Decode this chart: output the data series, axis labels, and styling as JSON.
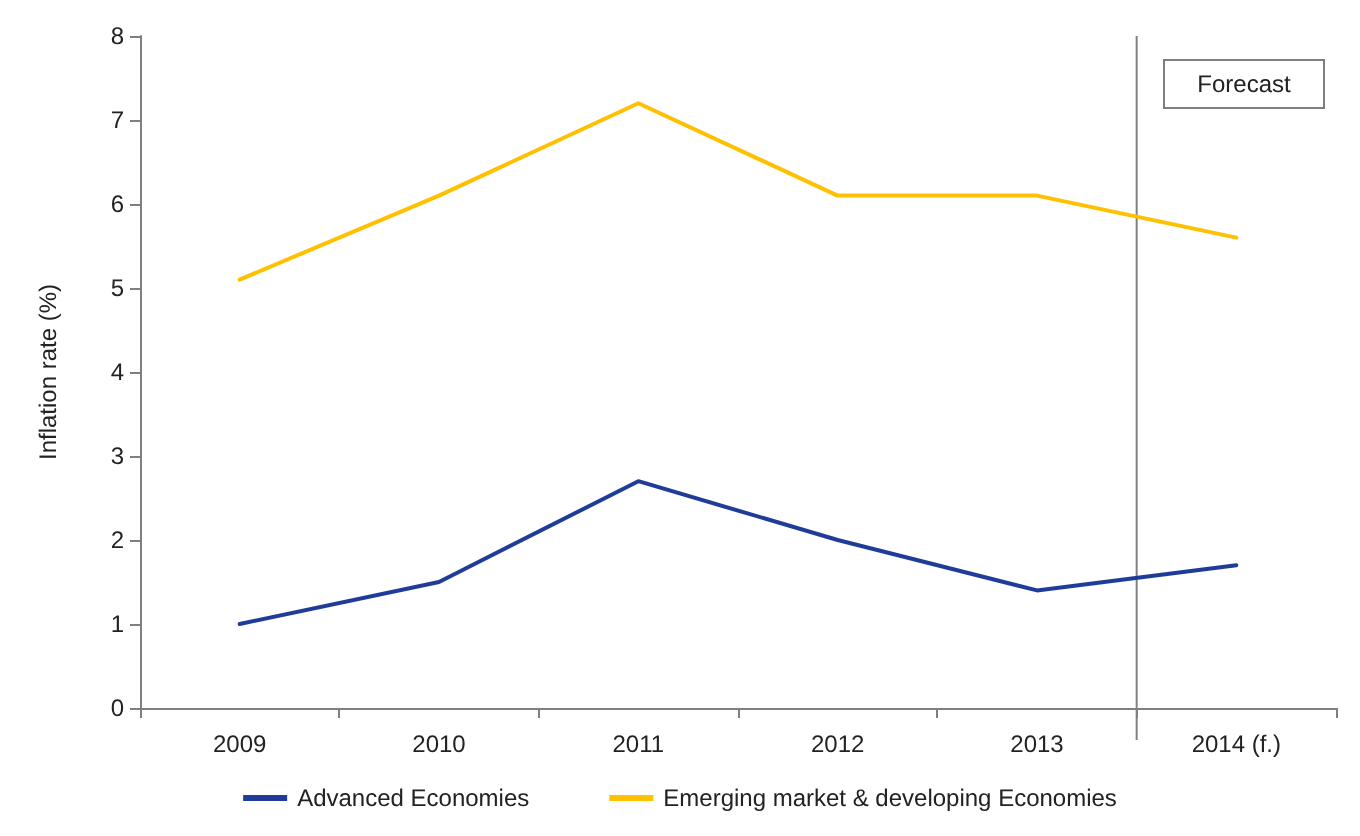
{
  "chart_data": {
    "type": "line",
    "ylabel": "Inflation rate (%)",
    "categories": [
      "2009",
      "2010",
      "2011",
      "2012",
      "2013",
      "2014 (f.)"
    ],
    "series": [
      {
        "name": "Advanced Economies",
        "color": "#1f3c99",
        "values": [
          1.0,
          1.5,
          2.7,
          2.0,
          1.4,
          1.7
        ]
      },
      {
        "name": "Emerging market & developing Economies",
        "color": "#ffc000",
        "values": [
          5.1,
          6.1,
          7.2,
          6.1,
          6.1,
          5.6
        ]
      }
    ],
    "ylim": [
      0,
      8
    ],
    "yticks": [
      0,
      1,
      2,
      3,
      4,
      5,
      6,
      7,
      8
    ],
    "grid": false,
    "legend": "bottom",
    "marker": "none",
    "line_style": "solid",
    "bands": [
      {
        "axis": "x",
        "from": "2014 (f.)",
        "to": "2014 (f.)",
        "label": "Forecast",
        "color": "#808080"
      }
    ]
  }
}
